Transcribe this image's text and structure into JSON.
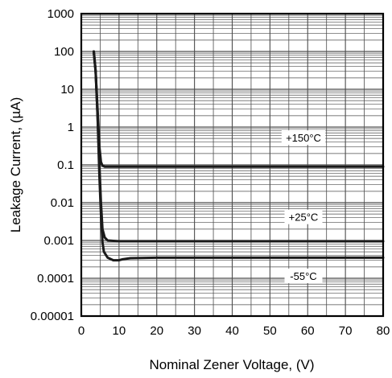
{
  "chart_data": {
    "type": "line",
    "xlabel": "Nominal Zener Voltage, (V)",
    "ylabel": "Leakage Current, (µA)",
    "xlim": [
      0,
      80
    ],
    "ylim": [
      1e-05,
      1000
    ],
    "y_scale": "log",
    "grid": true,
    "x_ticks": [
      "0",
      "10",
      "20",
      "30",
      "40",
      "50",
      "60",
      "70",
      "80"
    ],
    "y_ticks": [
      "1000",
      "100",
      "10",
      "1",
      "0.1",
      "0.01",
      "0.001",
      "0.0001",
      "0.00001"
    ],
    "series": [
      {
        "name": "+150°C",
        "x": [
          3.3,
          3.8,
          4.3,
          4.8,
          5.2,
          5.6,
          6.2,
          8,
          15,
          30,
          50,
          80
        ],
        "y": [
          100,
          30,
          3,
          0.3,
          0.12,
          0.095,
          0.09,
          0.09,
          0.09,
          0.09,
          0.09,
          0.09
        ]
      },
      {
        "name": "+25°C",
        "x": [
          3.3,
          3.8,
          4.3,
          4.8,
          5.2,
          5.6,
          6.2,
          7,
          10,
          20,
          40,
          80
        ],
        "y": [
          100,
          30,
          2,
          0.1,
          0.01,
          0.002,
          0.0012,
          0.001,
          0.00095,
          0.00095,
          0.00095,
          0.00095
        ]
      },
      {
        "name": "-55°C",
        "x": [
          3.3,
          3.8,
          4.3,
          4.8,
          5.2,
          5.6,
          6,
          7,
          8.5,
          10,
          11,
          13,
          20,
          40,
          80
        ],
        "y": [
          100,
          30,
          2,
          0.05,
          0.005,
          0.0009,
          0.0005,
          0.00035,
          0.0003,
          0.0003,
          0.00032,
          0.00034,
          0.00035,
          0.00035,
          0.00035
        ]
      }
    ]
  },
  "colors": {
    "line": "#1a1a1a",
    "grid": "#4d4d4d",
    "background": "#ffffff"
  }
}
